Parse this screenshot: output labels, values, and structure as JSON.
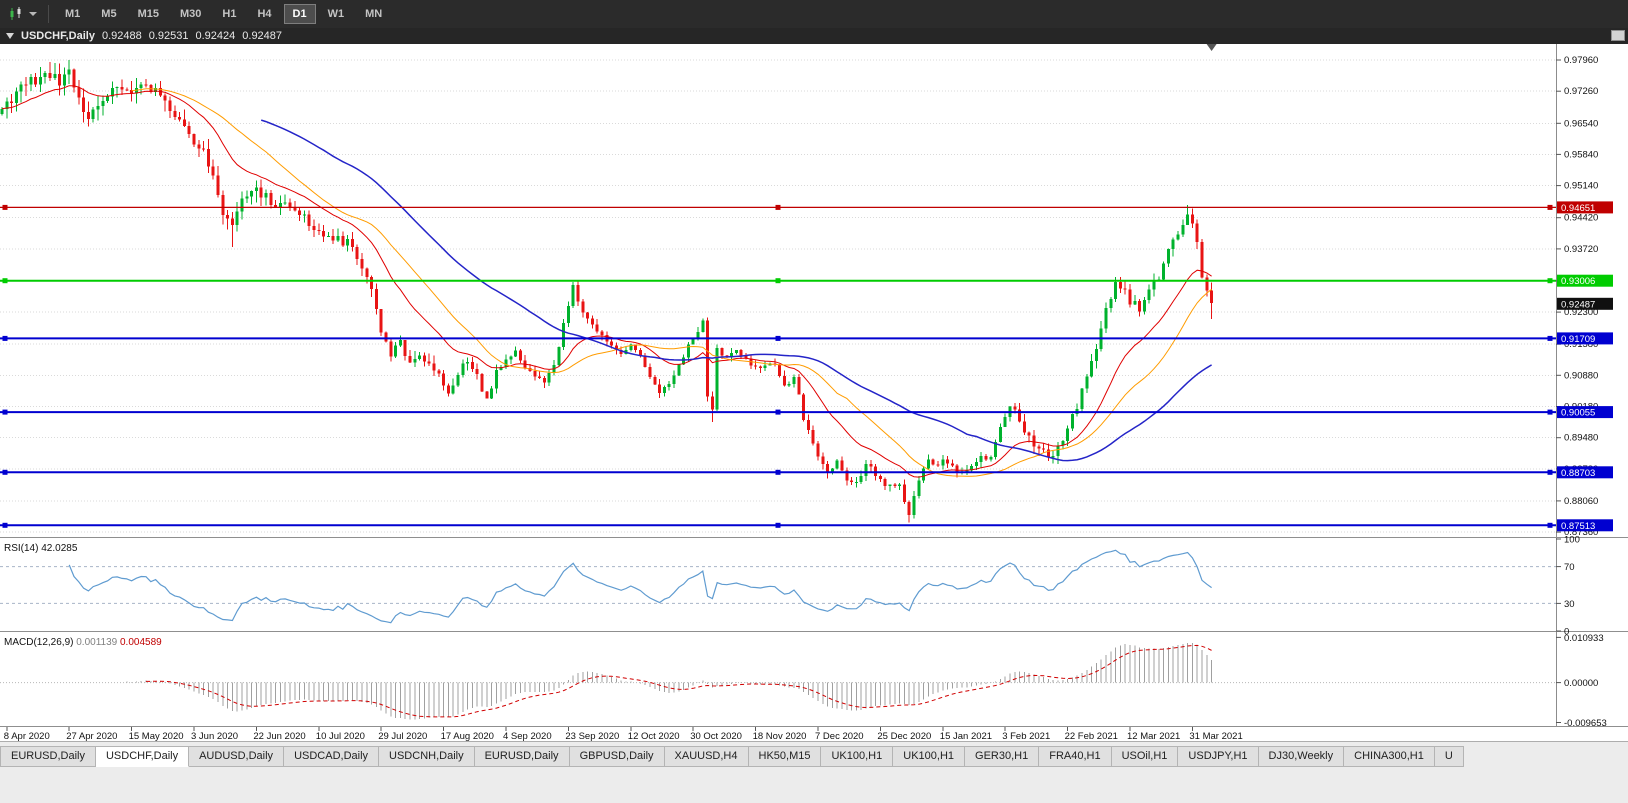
{
  "toolbar": {
    "timeframes": [
      "M1",
      "M5",
      "M15",
      "M30",
      "H1",
      "H4",
      "D1",
      "W1",
      "MN"
    ],
    "selected_timeframe": "D1"
  },
  "chart_header": {
    "symbol": "USDCHF,Daily",
    "open": "0.92488",
    "high": "0.92531",
    "low": "0.92424",
    "close": "0.92487"
  },
  "chart_data": {
    "type": "candlestick",
    "symbol": "USDCHF",
    "timeframe": "Daily",
    "bars": 253,
    "seed": 20210408,
    "colors": {
      "up": "#00B22D",
      "down": "#E81414"
    },
    "price_axis": {
      "top_price": 0.9832,
      "bottom_price": 0.8725,
      "ticks": [
        "0.97960",
        "0.97260",
        "0.96540",
        "0.95840",
        "0.95140",
        "0.94420",
        "0.93720",
        "0.93000",
        "0.92300",
        "0.91580",
        "0.90880",
        "0.90180",
        "0.89480",
        "0.88780",
        "0.88060",
        "0.87360"
      ]
    },
    "date_labels": [
      {
        "bar": 1,
        "label": "8 Apr 2020"
      },
      {
        "bar": 14,
        "label": "27 Apr 2020"
      },
      {
        "bar": 27,
        "label": "15 May 2020"
      },
      {
        "bar": 40,
        "label": "3 Jun 2020"
      },
      {
        "bar": 53,
        "label": "22 Jun 2020"
      },
      {
        "bar": 66,
        "label": "10 Jul 2020"
      },
      {
        "bar": 79,
        "label": "29 Jul 2020"
      },
      {
        "bar": 92,
        "label": "17 Aug 2020"
      },
      {
        "bar": 105,
        "label": "4 Sep 2020"
      },
      {
        "bar": 118,
        "label": "23 Sep 2020"
      },
      {
        "bar": 131,
        "label": "12 Oct 2020"
      },
      {
        "bar": 144,
        "label": "30 Oct 2020"
      },
      {
        "bar": 157,
        "label": "18 Nov 2020"
      },
      {
        "bar": 170,
        "label": "7 Dec 2020"
      },
      {
        "bar": 183,
        "label": "25 Dec 2020"
      },
      {
        "bar": 196,
        "label": "15 Jan 2021"
      },
      {
        "bar": 209,
        "label": "3 Feb 2021"
      },
      {
        "bar": 222,
        "label": "22 Feb 2021"
      },
      {
        "bar": 235,
        "label": "12 Mar 2021"
      },
      {
        "bar": 248,
        "label": "31 Mar 2021"
      }
    ],
    "price_path": [
      [
        0,
        0.969
      ],
      [
        3,
        0.972
      ],
      [
        6,
        0.9745
      ],
      [
        9,
        0.9762
      ],
      [
        12,
        0.9748
      ],
      [
        14,
        0.9772
      ],
      [
        16,
        0.97
      ],
      [
        18,
        0.9655
      ],
      [
        20,
        0.9693
      ],
      [
        23,
        0.973
      ],
      [
        26,
        0.9716
      ],
      [
        28,
        0.9738
      ],
      [
        30,
        0.9745
      ],
      [
        33,
        0.972
      ],
      [
        36,
        0.9676
      ],
      [
        38,
        0.9642
      ],
      [
        40,
        0.96
      ],
      [
        42,
        0.9585
      ],
      [
        44,
        0.9528
      ],
      [
        46,
        0.9452
      ],
      [
        48,
        0.9415
      ],
      [
        50,
        0.9478
      ],
      [
        52,
        0.9506
      ],
      [
        55,
        0.949
      ],
      [
        57,
        0.9462
      ],
      [
        60,
        0.9476
      ],
      [
        63,
        0.9442
      ],
      [
        66,
        0.941
      ],
      [
        69,
        0.9396
      ],
      [
        72,
        0.9386
      ],
      [
        75,
        0.933
      ],
      [
        77,
        0.9282
      ],
      [
        79,
        0.918
      ],
      [
        81,
        0.9132
      ],
      [
        83,
        0.9162
      ],
      [
        85,
        0.9112
      ],
      [
        87,
        0.9136
      ],
      [
        89,
        0.912
      ],
      [
        91,
        0.9096
      ],
      [
        93,
        0.9052
      ],
      [
        95,
        0.909
      ],
      [
        97,
        0.9122
      ],
      [
        99,
        0.9082
      ],
      [
        101,
        0.9032
      ],
      [
        103,
        0.9094
      ],
      [
        105,
        0.912
      ],
      [
        107,
        0.9146
      ],
      [
        109,
        0.9106
      ],
      [
        111,
        0.9086
      ],
      [
        113,
        0.907
      ],
      [
        115,
        0.911
      ],
      [
        117,
        0.92
      ],
      [
        119,
        0.929
      ],
      [
        121,
        0.9232
      ],
      [
        123,
        0.9196
      ],
      [
        125,
        0.918
      ],
      [
        127,
        0.916
      ],
      [
        129,
        0.9136
      ],
      [
        131,
        0.915
      ],
      [
        133,
        0.9136
      ],
      [
        135,
        0.9082
      ],
      [
        137,
        0.9046
      ],
      [
        139,
        0.9072
      ],
      [
        141,
        0.911
      ],
      [
        143,
        0.9156
      ],
      [
        144,
        0.9176
      ],
      [
        146,
        0.9206
      ],
      [
        147,
        0.9042
      ],
      [
        148,
        0.9006
      ],
      [
        149,
        0.9146
      ],
      [
        151,
        0.9126
      ],
      [
        153,
        0.9146
      ],
      [
        155,
        0.912
      ],
      [
        157,
        0.9106
      ],
      [
        159,
        0.9116
      ],
      [
        161,
        0.911
      ],
      [
        163,
        0.9062
      ],
      [
        165,
        0.9086
      ],
      [
        167,
        0.8992
      ],
      [
        169,
        0.8932
      ],
      [
        170,
        0.8906
      ],
      [
        172,
        0.8872
      ],
      [
        174,
        0.8892
      ],
      [
        176,
        0.8856
      ],
      [
        178,
        0.8842
      ],
      [
        180,
        0.889
      ],
      [
        182,
        0.8866
      ],
      [
        183,
        0.8852
      ],
      [
        185,
        0.8836
      ],
      [
        187,
        0.8842
      ],
      [
        188,
        0.8806
      ],
      [
        189,
        0.8776
      ],
      [
        191,
        0.8856
      ],
      [
        193,
        0.8896
      ],
      [
        195,
        0.8882
      ],
      [
        196,
        0.8902
      ],
      [
        198,
        0.8886
      ],
      [
        200,
        0.8866
      ],
      [
        202,
        0.8882
      ],
      [
        204,
        0.8906
      ],
      [
        206,
        0.89
      ],
      [
        208,
        0.8976
      ],
      [
        210,
        0.9024
      ],
      [
        212,
        0.899
      ],
      [
        214,
        0.8946
      ],
      [
        216,
        0.8922
      ],
      [
        218,
        0.8906
      ],
      [
        220,
        0.8926
      ],
      [
        222,
        0.8966
      ],
      [
        224,
        0.9022
      ],
      [
        226,
        0.9082
      ],
      [
        228,
        0.9142
      ],
      [
        230,
        0.9232
      ],
      [
        232,
        0.93
      ],
      [
        234,
        0.928
      ],
      [
        235,
        0.9256
      ],
      [
        237,
        0.9236
      ],
      [
        239,
        0.9272
      ],
      [
        241,
        0.9312
      ],
      [
        243,
        0.9366
      ],
      [
        245,
        0.9402
      ],
      [
        247,
        0.9456
      ],
      [
        248,
        0.9422
      ],
      [
        249,
        0.9382
      ],
      [
        250,
        0.9312
      ],
      [
        251,
        0.928
      ],
      [
        252,
        0.9249
      ]
    ],
    "wick_overrides": [
      {
        "bar": 12,
        "high": 0.9788
      },
      {
        "bar": 14,
        "high": 0.9796
      },
      {
        "bar": 48,
        "low": 0.9376
      },
      {
        "bar": 119,
        "high": 0.9296
      },
      {
        "bar": 148,
        "low": 0.8983
      },
      {
        "bar": 189,
        "low": 0.8758
      },
      {
        "bar": 247,
        "high": 0.9471
      },
      {
        "bar": 252,
        "low": 0.9215
      }
    ],
    "moving_averages": [
      {
        "name": "fast",
        "type": "ema",
        "period": 18,
        "color": "#E00000",
        "width": 1
      },
      {
        "name": "mid",
        "type": "sma",
        "period": 28,
        "color": "#FF9C00",
        "width": 1
      },
      {
        "name": "slow",
        "type": "sma",
        "period": 55,
        "color": "#2424C8",
        "width": 1.5
      }
    ],
    "horizontal_lines": [
      {
        "value": 0.94651,
        "label": "0.94651",
        "color": "#C00000",
        "width": 1.2
      },
      {
        "value": 0.93006,
        "label": "0.93006",
        "color": "#00CC00",
        "width": 2
      },
      {
        "value": 0.91709,
        "label": "0.91709",
        "color": "#0000D0",
        "width": 2
      },
      {
        "value": 0.90055,
        "label": "0.90055",
        "color": "#0000D0",
        "width": 2
      },
      {
        "value": 0.88703,
        "label": "0.88703",
        "color": "#0000D0",
        "width": 2
      },
      {
        "value": 0.87513,
        "label": "0.87513",
        "color": "#0000D0",
        "width": 2
      }
    ],
    "current_price": {
      "value": 0.92487,
      "label": "0.92487"
    },
    "rsi": {
      "label": "RSI(14)",
      "value": "42.0285",
      "period": 14,
      "color": "#5F9BD0",
      "levels": [
        70,
        30
      ],
      "axis_labels": [
        100,
        70,
        30,
        0
      ]
    },
    "macd": {
      "label": "MACD(12,26,9)",
      "main": "0.001139",
      "signal": "0.004589",
      "fast": 12,
      "slow": 26,
      "signal_period": 9,
      "axis_labels": [
        "0.010933",
        "0.00000",
        "-0.009653"
      ],
      "axis_max": 0.012,
      "axis_min": -0.0105,
      "hist_color": "#a0a0a0",
      "signal_color": "#D00000"
    }
  },
  "tabs": {
    "items": [
      {
        "label": "EURUSD,Daily"
      },
      {
        "label": "USDCHF,Daily",
        "active": true
      },
      {
        "label": "AUDUSD,Daily"
      },
      {
        "label": "USDCAD,Daily"
      },
      {
        "label": "USDCNH,Daily"
      },
      {
        "label": "EURUSD,Daily"
      },
      {
        "label": "GBPUSD,Daily"
      },
      {
        "label": "XAUUSD,H4"
      },
      {
        "label": "HK50,M15"
      },
      {
        "label": "UK100,H1"
      },
      {
        "label": "UK100,H1"
      },
      {
        "label": "GER30,H1"
      },
      {
        "label": "FRA40,H1"
      },
      {
        "label": "USOil,H1"
      },
      {
        "label": "USDJPY,H1"
      },
      {
        "label": "DJ30,Weekly"
      },
      {
        "label": "CHINA300,H1"
      },
      {
        "label": "U"
      }
    ]
  }
}
